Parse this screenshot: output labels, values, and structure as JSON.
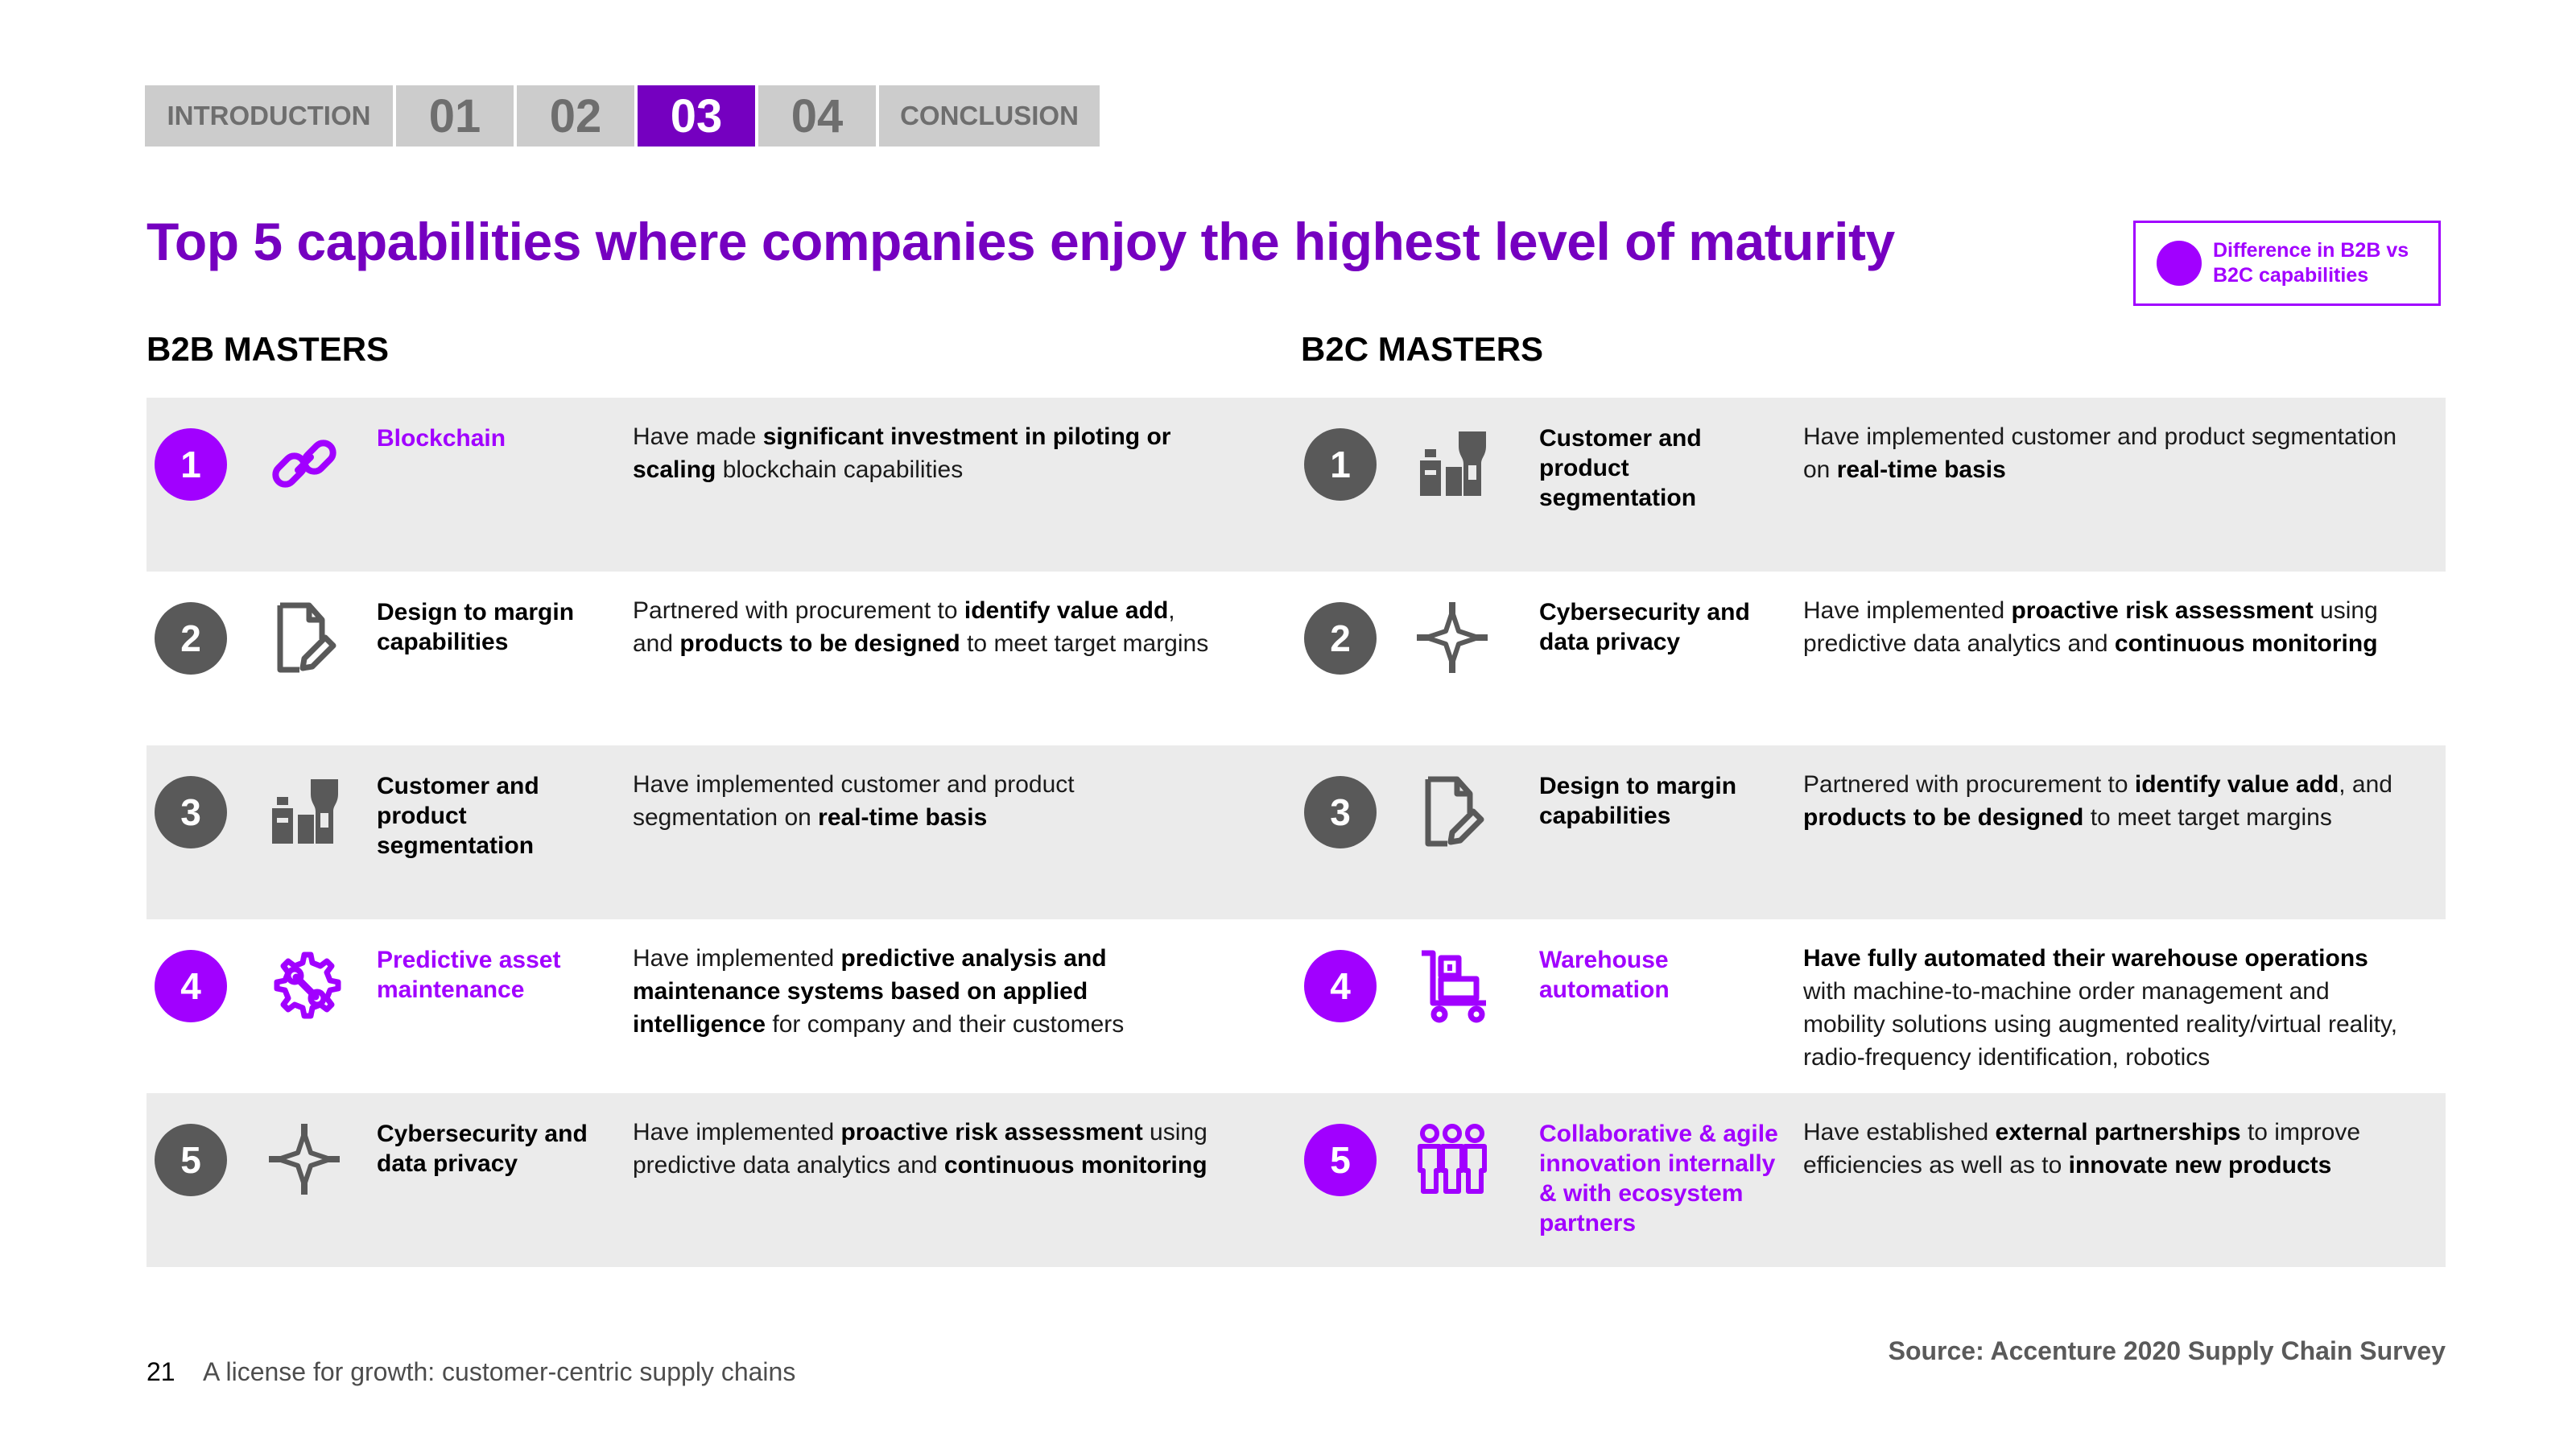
{
  "nav": {
    "tabs": [
      {
        "label": "INTRODUCTION",
        "active": false
      },
      {
        "label": "01",
        "active": false
      },
      {
        "label": "02",
        "active": false
      },
      {
        "label": "03",
        "active": true
      },
      {
        "label": "04",
        "active": false
      },
      {
        "label": "CONCLUSION",
        "active": false
      }
    ]
  },
  "title": "Top 5 capabilities where companies enjoy the highest level of maturity",
  "legend": {
    "label": "Difference in B2B vs B2C capabilities",
    "color": "#a100ff"
  },
  "colors": {
    "accent": "#a100ff",
    "title": "#7500c0",
    "badge_default": "#595959",
    "row_bg": "#ebebeb"
  },
  "b2b": {
    "heading": "B2B MASTERS",
    "items": [
      {
        "rank": "1",
        "highlight": true,
        "icon": "link-chain-icon",
        "capability": "Blockchain",
        "description": [
          {
            "t": "Have made "
          },
          {
            "t": "significant investment in piloting or scaling",
            "b": true
          },
          {
            "t": " blockchain capabilities"
          }
        ]
      },
      {
        "rank": "2",
        "highlight": false,
        "icon": "document-edit-icon",
        "capability": "Design to margin capabilities",
        "description": [
          {
            "t": "Partnered with procurement to "
          },
          {
            "t": "identify value add",
            "b": true
          },
          {
            "t": ", and "
          },
          {
            "t": "products to be designed",
            "b": true
          },
          {
            "t": " to meet target margins"
          }
        ]
      },
      {
        "rank": "3",
        "highlight": false,
        "icon": "product-segmentation-icon",
        "capability": "Customer and product segmentation",
        "description": [
          {
            "t": "Have implemented customer and product segmentation on "
          },
          {
            "t": "real-time basis",
            "b": true
          }
        ]
      },
      {
        "rank": "4",
        "highlight": true,
        "icon": "gear-wrench-icon",
        "capability": "Predictive asset maintenance",
        "description": [
          {
            "t": "Have implemented "
          },
          {
            "t": "predictive analysis and maintenance systems based on applied intelligence",
            "b": true
          },
          {
            "t": " for company and their customers"
          }
        ]
      },
      {
        "rank": "5",
        "highlight": false,
        "icon": "cyber-shield-icon",
        "capability": "Cybersecurity and data privacy",
        "description": [
          {
            "t": "Have implemented "
          },
          {
            "t": "proactive risk assessment",
            "b": true
          },
          {
            "t": " using predictive data analytics and "
          },
          {
            "t": "continuous monitoring",
            "b": true
          }
        ]
      }
    ]
  },
  "b2c": {
    "heading": "B2C MASTERS",
    "items": [
      {
        "rank": "1",
        "highlight": false,
        "icon": "product-segmentation-icon",
        "capability": "Customer and product segmentation",
        "description": [
          {
            "t": "Have implemented customer and product segmentation on "
          },
          {
            "t": "real-time basis",
            "b": true
          }
        ]
      },
      {
        "rank": "2",
        "highlight": false,
        "icon": "cyber-shield-icon",
        "capability": "Cybersecurity and data privacy",
        "description": [
          {
            "t": "Have implemented "
          },
          {
            "t": "proactive risk assessment",
            "b": true
          },
          {
            "t": " using predictive data analytics and "
          },
          {
            "t": "continuous monitoring",
            "b": true
          }
        ]
      },
      {
        "rank": "3",
        "highlight": false,
        "icon": "document-edit-icon",
        "capability": "Design to margin capabilities",
        "description": [
          {
            "t": "Partnered with procurement to "
          },
          {
            "t": "identify value add",
            "b": true
          },
          {
            "t": ", and "
          },
          {
            "t": "products to be designed",
            "b": true
          },
          {
            "t": " to meet target margins"
          }
        ]
      },
      {
        "rank": "4",
        "highlight": true,
        "icon": "warehouse-cart-icon",
        "capability": "Warehouse automation",
        "description": [
          {
            "t": "Have fully automated their warehouse operations",
            "b": true
          },
          {
            "t": " with machine-to-machine order management and mobility solutions using augmented reality/virtual reality, radio-frequency identification, robotics"
          }
        ]
      },
      {
        "rank": "5",
        "highlight": true,
        "icon": "team-collaboration-icon",
        "capability": "Collaborative & agile innovation internally & with ecosystem partners",
        "description": [
          {
            "t": "Have established "
          },
          {
            "t": "external partnerships",
            "b": true
          },
          {
            "t": " to improve efficiencies as well as to "
          },
          {
            "t": "innovate new products",
            "b": true
          }
        ]
      }
    ]
  },
  "footer": {
    "page_number": "21",
    "doc_title": "A license for growth: customer-centric supply chains",
    "source": "Source: Accenture 2020 Supply Chain Survey"
  }
}
